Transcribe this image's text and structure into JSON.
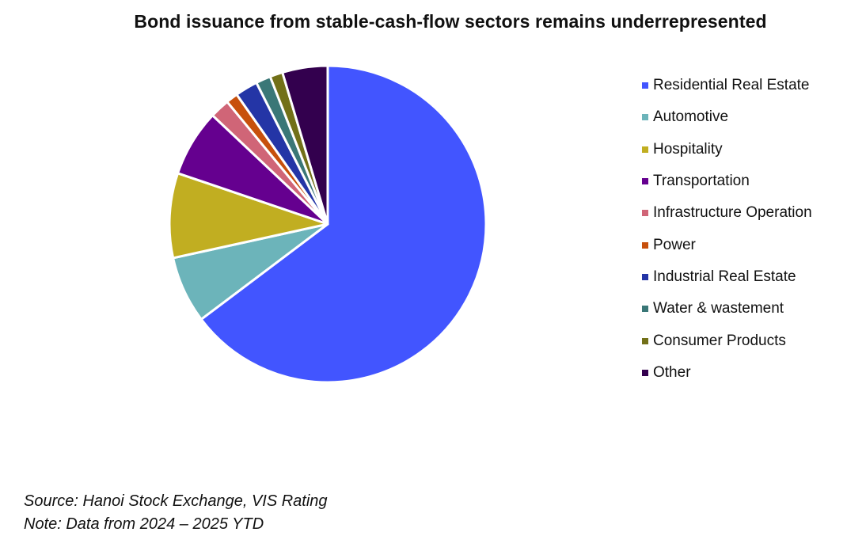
{
  "chart_data": {
    "type": "pie",
    "title": "Bond issuance from stable-cash-flow sectors remains underrepresented",
    "legend_position": "right",
    "slices": [
      {
        "label": "Residential Real Estate",
        "value": 64.4,
        "color": "#4255FF"
      },
      {
        "label": "Automotive",
        "value": 6.8,
        "color": "#6CB4BA"
      },
      {
        "label": "Hospitality",
        "value": 8.6,
        "color": "#C1AE21"
      },
      {
        "label": "Transportation",
        "value": 6.8,
        "color": "#65008F"
      },
      {
        "label": "Infrastructure Operation",
        "value": 2.0,
        "color": "#D06577"
      },
      {
        "label": "Power",
        "value": 1.2,
        "color": "#C7500C"
      },
      {
        "label": "Industrial Real Estate",
        "value": 2.3,
        "color": "#2435A6"
      },
      {
        "label": "Water & wastement",
        "value": 1.5,
        "color": "#3A7777"
      },
      {
        "label": "Consumer Products",
        "value": 1.3,
        "color": "#727018"
      },
      {
        "label": "Other",
        "value": 4.6,
        "color": "#33004E"
      }
    ]
  },
  "footer": {
    "source": "Source: Hanoi Stock Exchange, VIS Rating",
    "note": "Note: Data from 2024 – 2025 YTD"
  }
}
